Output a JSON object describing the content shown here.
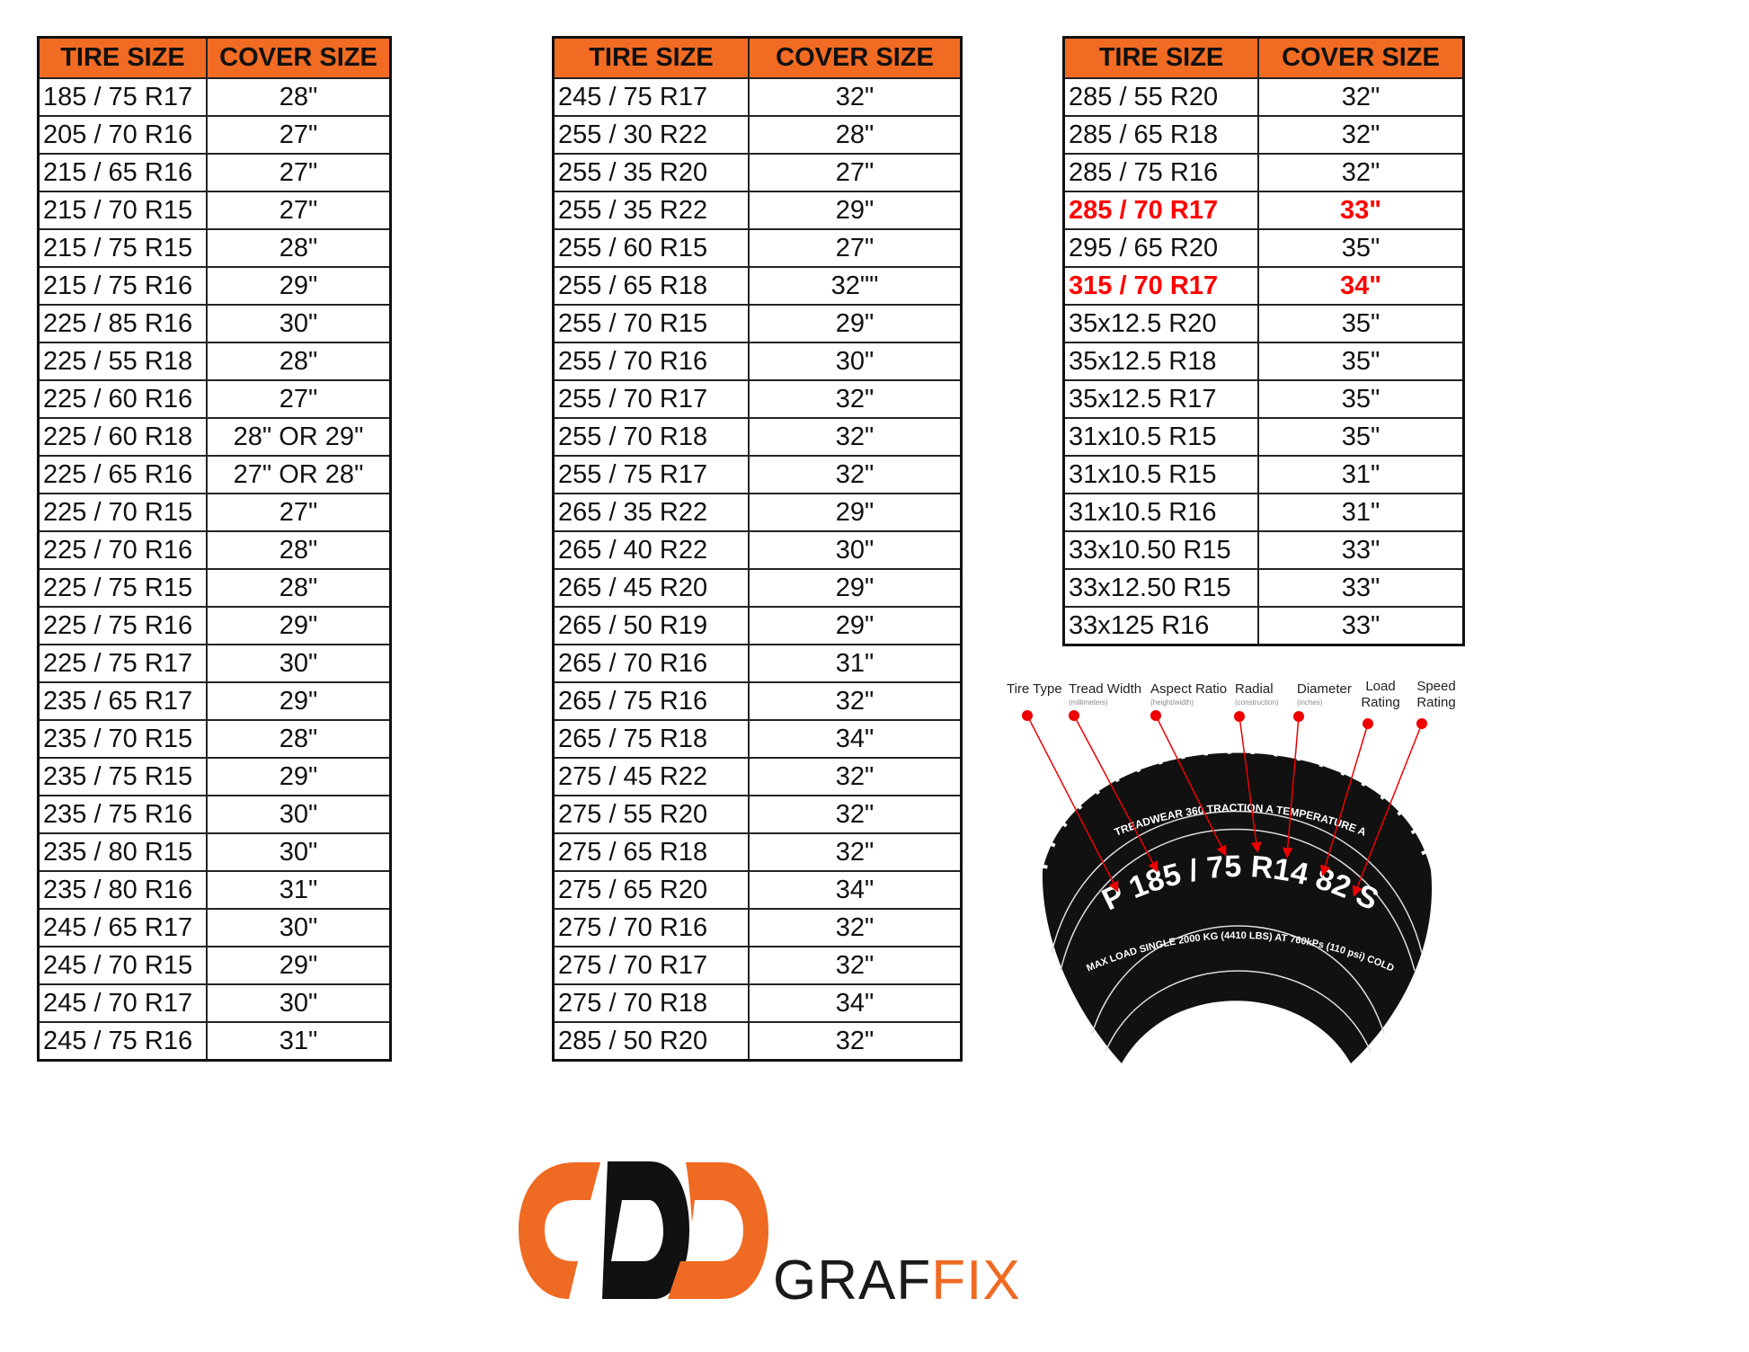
{
  "colors": {
    "header": "#F26B23",
    "highlight": "#FF0000",
    "logo_orange": "#EF6A22",
    "logo_black": "#111111"
  },
  "tables": [
    {
      "headers": [
        "TIRE SIZE",
        "COVER SIZE"
      ],
      "rows": [
        [
          "185 / 75 R17",
          "28\""
        ],
        [
          "205 / 70 R16",
          "27\""
        ],
        [
          "215 / 65 R16",
          "27\""
        ],
        [
          "215 / 70 R15",
          "27\""
        ],
        [
          "215 / 75 R15",
          "28\""
        ],
        [
          "215 / 75 R16",
          "29\""
        ],
        [
          "225 / 85 R16",
          "30\""
        ],
        [
          "225 / 55 R18",
          "28\""
        ],
        [
          "225 / 60 R16",
          "27\""
        ],
        [
          "225 / 60 R18",
          "28\" OR 29\""
        ],
        [
          "225 / 65 R16",
          "27\" OR 28\""
        ],
        [
          "225 / 70 R15",
          "27\""
        ],
        [
          "225 / 70 R16",
          "28\""
        ],
        [
          "225 / 75 R15",
          "28\""
        ],
        [
          "225 / 75 R16",
          "29\""
        ],
        [
          "225 / 75 R17",
          "30\""
        ],
        [
          "235 / 65 R17",
          "29\""
        ],
        [
          "235 / 70 R15",
          "28\""
        ],
        [
          "235 / 75 R15",
          "29\""
        ],
        [
          "235 / 75 R16",
          "30\""
        ],
        [
          "235 / 80 R15",
          "30\""
        ],
        [
          "235 / 80 R16",
          "31\""
        ],
        [
          "245 / 65 R17",
          "30\""
        ],
        [
          "245 / 70 R15",
          "29\""
        ],
        [
          "245 / 70 R17",
          "30\""
        ],
        [
          "245 / 75 R16",
          "31\""
        ]
      ]
    },
    {
      "headers": [
        "TIRE SIZE",
        "COVER SIZE"
      ],
      "rows": [
        [
          "245 / 75 R17",
          "32\""
        ],
        [
          "255 / 30 R22",
          "28\""
        ],
        [
          "255 / 35 R20",
          "27\""
        ],
        [
          "255 / 35 R22",
          "29\""
        ],
        [
          "255 / 60 R15",
          "27\""
        ],
        [
          "255 / 65 R18",
          "32\"\""
        ],
        [
          "255 / 70 R15",
          "29\""
        ],
        [
          "255 / 70 R16",
          "30\""
        ],
        [
          "255 / 70 R17",
          "32\""
        ],
        [
          "255 / 70 R18",
          "32\""
        ],
        [
          "255 / 75 R17",
          "32\""
        ],
        [
          "265 / 35 R22",
          "29\""
        ],
        [
          "265 / 40 R22",
          "30\""
        ],
        [
          "265 / 45 R20",
          "29\""
        ],
        [
          "265 / 50 R19",
          "29\""
        ],
        [
          "265 / 70 R16",
          "31\""
        ],
        [
          "265 / 75 R16",
          "32\""
        ],
        [
          "265 / 75 R18",
          "34\""
        ],
        [
          "275 / 45 R22",
          "32\""
        ],
        [
          "275 / 55 R20",
          "32\""
        ],
        [
          "275 / 65 R18",
          "32\""
        ],
        [
          "275 / 65 R20",
          "34\""
        ],
        [
          "275 / 70 R16",
          "32\""
        ],
        [
          "275 / 70 R17",
          "32\""
        ],
        [
          "275 / 70 R18",
          "34\""
        ],
        [
          "285 / 50 R20",
          "32\""
        ]
      ]
    },
    {
      "headers": [
        "TIRE SIZE",
        "COVER SIZE"
      ],
      "highlighted_rows": [
        3,
        5
      ],
      "rows": [
        [
          "285 / 55 R20",
          "32\""
        ],
        [
          "285 / 65 R18",
          "32\""
        ],
        [
          "285 / 75 R16",
          "32\""
        ],
        [
          "285 / 70 R17",
          "33\""
        ],
        [
          "295 / 65 R20",
          "35\""
        ],
        [
          "315 / 70 R17",
          "34\""
        ],
        [
          "35x12.5 R20",
          "35\""
        ],
        [
          "35x12.5 R18",
          "35\""
        ],
        [
          "35x12.5 R17",
          "35\""
        ],
        [
          "31x10.5 R15",
          "35\""
        ],
        [
          "31x10.5 R15",
          "31\""
        ],
        [
          "31x10.5 R16",
          "31\""
        ],
        [
          "33x10.50 R15",
          "33\""
        ],
        [
          "33x12.50 R15",
          "33\""
        ],
        [
          "33x125 R16",
          "33\""
        ]
      ]
    }
  ],
  "tire_diagram": {
    "labels": [
      {
        "title": "Tire Type",
        "sub": ""
      },
      {
        "title": "Tread Width",
        "sub": "(millimeters)"
      },
      {
        "title": "Aspect Ratio",
        "sub": "(height/width)"
      },
      {
        "title": "Radial",
        "sub": "(construction)"
      },
      {
        "title": "Diameter",
        "sub": "(inches)"
      },
      {
        "title": "Load",
        "title2": "Rating",
        "sub": ""
      },
      {
        "title": "Speed",
        "title2": "Rating",
        "sub": ""
      }
    ],
    "main_code": "P 185 / 75 R14 82 S",
    "upper_text": "TREADWEAR 360   TRACTION A   TEMPERATURE A",
    "lower_text": "MAX LOAD SINGLE 2000 KG (4410 LBS) AT 760kPs (110 psi) COLD"
  },
  "logo": {
    "word1": "GRAF",
    "word2": "FIX"
  }
}
